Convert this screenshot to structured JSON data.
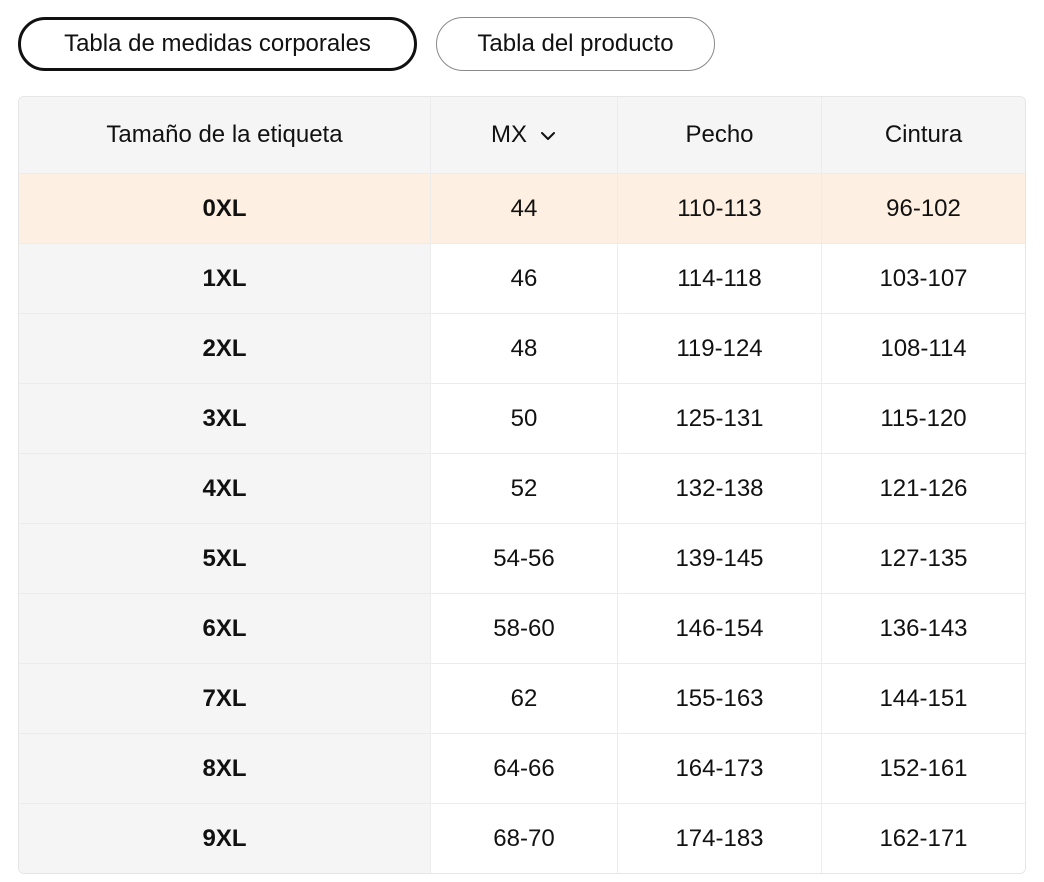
{
  "tabs": {
    "body_measurements": "Tabla de medidas corporales",
    "product": "Tabla del producto"
  },
  "table": {
    "headers": {
      "tag_size": "Tamaño de la etiqueta",
      "region": "MX",
      "chest": "Pecho",
      "waist": "Cintura"
    },
    "rows": [
      {
        "size": "0XL",
        "mx": "44",
        "chest": "110-113",
        "waist": "96-102"
      },
      {
        "size": "1XL",
        "mx": "46",
        "chest": "114-118",
        "waist": "103-107"
      },
      {
        "size": "2XL",
        "mx": "48",
        "chest": "119-124",
        "waist": "108-114"
      },
      {
        "size": "3XL",
        "mx": "50",
        "chest": "125-131",
        "waist": "115-120"
      },
      {
        "size": "4XL",
        "mx": "52",
        "chest": "132-138",
        "waist": "121-126"
      },
      {
        "size": "5XL",
        "mx": "54-56",
        "chest": "139-145",
        "waist": "127-135"
      },
      {
        "size": "6XL",
        "mx": "58-60",
        "chest": "146-154",
        "waist": "136-143"
      },
      {
        "size": "7XL",
        "mx": "62",
        "chest": "155-163",
        "waist": "144-151"
      },
      {
        "size": "8XL",
        "mx": "64-66",
        "chest": "164-173",
        "waist": "152-161"
      },
      {
        "size": "9XL",
        "mx": "68-70",
        "chest": "174-183",
        "waist": "162-171"
      }
    ],
    "highlight_color": "#fdefe1",
    "region_dropdown_icon": "chevron-down-icon"
  }
}
